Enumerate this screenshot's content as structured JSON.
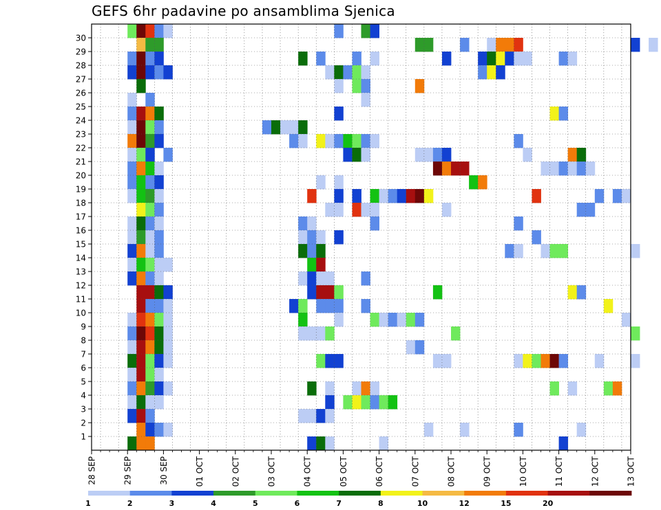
{
  "chart_data": {
    "type": "heatmap",
    "title": "GEFS 6hr padavine po ansamblima Sjenica",
    "x_ticks": [
      "28 SEP",
      "29 SEP",
      "30 SEP",
      "01 OCT",
      "02 OCT",
      "03 OCT",
      "04 OCT",
      "05 OCT",
      "06 OCT",
      "07 OCT",
      "08 OCT",
      "09 OCT",
      "10 OCT",
      "11 OCT",
      "12 OCT",
      "13 OCT"
    ],
    "y_ticks": [
      "1",
      "2",
      "3",
      "4",
      "5",
      "6",
      "7",
      "8",
      "9",
      "10",
      "11",
      "12",
      "13",
      "14",
      "15",
      "16",
      "17",
      "18",
      "19",
      "20",
      "21",
      "22",
      "23",
      "24",
      "25",
      "26",
      "27",
      "28",
      "29",
      "30"
    ],
    "x_range": [
      "28 SEP 00Z",
      "13 OCT 00Z"
    ],
    "x_step": "6h",
    "y_range": [
      0,
      30
    ],
    "grid": true,
    "colorbar": {
      "labels": [
        "1",
        "2",
        "3",
        "4",
        "5",
        "6",
        "7",
        "8",
        "10",
        "12",
        "15",
        "20"
      ],
      "colors": [
        "#bccdf5",
        "#5c8bea",
        "#1241d2",
        "#2e9b2a",
        "#6fea5c",
        "#13c213",
        "#0a6d0a",
        "#f2f21a",
        "#f5ba43",
        "#f27b09",
        "#e1320f",
        "#a70f0f",
        "#6d0707"
      ]
    },
    "cells": [
      [
        30,
        4,
        4
      ],
      [
        30,
        5,
        12
      ],
      [
        30,
        6,
        10
      ],
      [
        30,
        7,
        1
      ],
      [
        30,
        8,
        0
      ],
      [
        30,
        27,
        1
      ],
      [
        30,
        30,
        3
      ],
      [
        30,
        31,
        2
      ],
      [
        29,
        5,
        8
      ],
      [
        29,
        6,
        3
      ],
      [
        29,
        7,
        3
      ],
      [
        29,
        36,
        3
      ],
      [
        29,
        37,
        3
      ],
      [
        29,
        41,
        1
      ],
      [
        29,
        44,
        0
      ],
      [
        29,
        45,
        9
      ],
      [
        29,
        46,
        9
      ],
      [
        29,
        47,
        10
      ],
      [
        29,
        60,
        2
      ],
      [
        29,
        62,
        0
      ],
      [
        29,
        67,
        12
      ],
      [
        29,
        68,
        12
      ],
      [
        29,
        69,
        11
      ],
      [
        28,
        4,
        1
      ],
      [
        28,
        5,
        12
      ],
      [
        28,
        6,
        1
      ],
      [
        28,
        7,
        2
      ],
      [
        28,
        23,
        6
      ],
      [
        28,
        25,
        1
      ],
      [
        28,
        29,
        1
      ],
      [
        28,
        31,
        0
      ],
      [
        28,
        39,
        2
      ],
      [
        28,
        43,
        2
      ],
      [
        28,
        44,
        6
      ],
      [
        28,
        45,
        7
      ],
      [
        28,
        46,
        2
      ],
      [
        28,
        47,
        0
      ],
      [
        28,
        48,
        0
      ],
      [
        28,
        52,
        1
      ],
      [
        28,
        53,
        0
      ],
      [
        27,
        4,
        2
      ],
      [
        27,
        5,
        12
      ],
      [
        27,
        6,
        2
      ],
      [
        27,
        7,
        1
      ],
      [
        27,
        8,
        2
      ],
      [
        27,
        26,
        0
      ],
      [
        27,
        27,
        6
      ],
      [
        27,
        28,
        1
      ],
      [
        27,
        29,
        4
      ],
      [
        27,
        30,
        0
      ],
      [
        27,
        43,
        1
      ],
      [
        27,
        44,
        7
      ],
      [
        27,
        45,
        2
      ],
      [
        27,
        69,
        1
      ],
      [
        27,
        70,
        2
      ],
      [
        26,
        5,
        6
      ],
      [
        26,
        27,
        0
      ],
      [
        26,
        29,
        4
      ],
      [
        26,
        30,
        1
      ],
      [
        26,
        36,
        9
      ],
      [
        25,
        4,
        0
      ],
      [
        25,
        6,
        1
      ],
      [
        25,
        30,
        0
      ],
      [
        24,
        4,
        1
      ],
      [
        24,
        5,
        11
      ],
      [
        24,
        6,
        9
      ],
      [
        24,
        7,
        6
      ],
      [
        24,
        27,
        2
      ],
      [
        24,
        51,
        7
      ],
      [
        24,
        52,
        1
      ],
      [
        23,
        4,
        0
      ],
      [
        23,
        5,
        12
      ],
      [
        23,
        6,
        4
      ],
      [
        23,
        7,
        1
      ],
      [
        23,
        19,
        1
      ],
      [
        23,
        20,
        6
      ],
      [
        23,
        21,
        0
      ],
      [
        23,
        22,
        0
      ],
      [
        23,
        23,
        6
      ],
      [
        22,
        4,
        9
      ],
      [
        22,
        5,
        12
      ],
      [
        22,
        6,
        3
      ],
      [
        22,
        7,
        2
      ],
      [
        22,
        22,
        1
      ],
      [
        22,
        23,
        0
      ],
      [
        22,
        25,
        7
      ],
      [
        22,
        26,
        0
      ],
      [
        22,
        27,
        1
      ],
      [
        22,
        28,
        5
      ],
      [
        22,
        29,
        4
      ],
      [
        22,
        30,
        1
      ],
      [
        22,
        31,
        0
      ],
      [
        22,
        47,
        1
      ],
      [
        21,
        4,
        0
      ],
      [
        21,
        5,
        4
      ],
      [
        21,
        6,
        2
      ],
      [
        21,
        8,
        1
      ],
      [
        21,
        28,
        2
      ],
      [
        21,
        29,
        6
      ],
      [
        21,
        30,
        0
      ],
      [
        21,
        36,
        0
      ],
      [
        21,
        37,
        0
      ],
      [
        21,
        38,
        1
      ],
      [
        21,
        39,
        2
      ],
      [
        21,
        48,
        0
      ],
      [
        21,
        53,
        9
      ],
      [
        21,
        54,
        6
      ],
      [
        20,
        4,
        1
      ],
      [
        20,
        5,
        9
      ],
      [
        20,
        6,
        5
      ],
      [
        20,
        7,
        0
      ],
      [
        20,
        38,
        12
      ],
      [
        20,
        39,
        9
      ],
      [
        20,
        40,
        11
      ],
      [
        20,
        41,
        11
      ],
      [
        20,
        50,
        0
      ],
      [
        20,
        51,
        0
      ],
      [
        20,
        52,
        1
      ],
      [
        20,
        53,
        0
      ],
      [
        20,
        54,
        1
      ],
      [
        20,
        55,
        0
      ],
      [
        19,
        4,
        1
      ],
      [
        19,
        5,
        5
      ],
      [
        19,
        6,
        1
      ],
      [
        19,
        7,
        2
      ],
      [
        19,
        25,
        0
      ],
      [
        19,
        27,
        0
      ],
      [
        19,
        42,
        5
      ],
      [
        19,
        43,
        9
      ],
      [
        18,
        4,
        0
      ],
      [
        18,
        5,
        5
      ],
      [
        18,
        6,
        3
      ],
      [
        18,
        7,
        0
      ],
      [
        18,
        24,
        10
      ],
      [
        18,
        27,
        2
      ],
      [
        18,
        29,
        2
      ],
      [
        18,
        31,
        5
      ],
      [
        18,
        32,
        0
      ],
      [
        18,
        33,
        1
      ],
      [
        18,
        34,
        2
      ],
      [
        18,
        35,
        11
      ],
      [
        18,
        36,
        12
      ],
      [
        18,
        37,
        7
      ],
      [
        18,
        49,
        10
      ],
      [
        18,
        56,
        1
      ],
      [
        18,
        58,
        1
      ],
      [
        18,
        59,
        0
      ],
      [
        17,
        5,
        7
      ],
      [
        17,
        6,
        4
      ],
      [
        17,
        7,
        1
      ],
      [
        17,
        26,
        0
      ],
      [
        17,
        27,
        0
      ],
      [
        17,
        29,
        10
      ],
      [
        17,
        30,
        0
      ],
      [
        17,
        31,
        0
      ],
      [
        17,
        39,
        0
      ],
      [
        17,
        54,
        1
      ],
      [
        17,
        55,
        1
      ],
      [
        16,
        4,
        0
      ],
      [
        16,
        5,
        6
      ],
      [
        16,
        6,
        1
      ],
      [
        16,
        7,
        0
      ],
      [
        16,
        23,
        1
      ],
      [
        16,
        24,
        0
      ],
      [
        16,
        31,
        1
      ],
      [
        16,
        47,
        1
      ],
      [
        15,
        4,
        0
      ],
      [
        15,
        5,
        3
      ],
      [
        15,
        6,
        0
      ],
      [
        15,
        7,
        1
      ],
      [
        15,
        23,
        0
      ],
      [
        15,
        24,
        1
      ],
      [
        15,
        25,
        0
      ],
      [
        15,
        27,
        2
      ],
      [
        15,
        49,
        1
      ],
      [
        14,
        4,
        2
      ],
      [
        14,
        5,
        9
      ],
      [
        14,
        6,
        0
      ],
      [
        14,
        7,
        1
      ],
      [
        14,
        23,
        6
      ],
      [
        14,
        24,
        1
      ],
      [
        14,
        25,
        6
      ],
      [
        14,
        46,
        1
      ],
      [
        14,
        47,
        0
      ],
      [
        14,
        50,
        0
      ],
      [
        14,
        51,
        4
      ],
      [
        14,
        52,
        4
      ],
      [
        14,
        60,
        0
      ],
      [
        13,
        4,
        0
      ],
      [
        13,
        5,
        5
      ],
      [
        13,
        6,
        4
      ],
      [
        13,
        7,
        0
      ],
      [
        13,
        8,
        0
      ],
      [
        13,
        24,
        5
      ],
      [
        13,
        25,
        11
      ],
      [
        12,
        4,
        2
      ],
      [
        12,
        5,
        9
      ],
      [
        12,
        6,
        1
      ],
      [
        12,
        7,
        0
      ],
      [
        12,
        23,
        0
      ],
      [
        12,
        24,
        2
      ],
      [
        12,
        25,
        0
      ],
      [
        12,
        26,
        0
      ],
      [
        12,
        30,
        1
      ],
      [
        11,
        5,
        11
      ],
      [
        11,
        6,
        11
      ],
      [
        11,
        7,
        6
      ],
      [
        11,
        8,
        2
      ],
      [
        11,
        24,
        2
      ],
      [
        11,
        25,
        11
      ],
      [
        11,
        26,
        11
      ],
      [
        11,
        27,
        4
      ],
      [
        11,
        38,
        5
      ],
      [
        11,
        53,
        7
      ],
      [
        11,
        54,
        1
      ],
      [
        10,
        5,
        11
      ],
      [
        10,
        6,
        1
      ],
      [
        10,
        7,
        1
      ],
      [
        10,
        8,
        0
      ],
      [
        10,
        22,
        2
      ],
      [
        10,
        23,
        4
      ],
      [
        10,
        25,
        1
      ],
      [
        10,
        26,
        1
      ],
      [
        10,
        27,
        1
      ],
      [
        10,
        30,
        1
      ],
      [
        10,
        57,
        7
      ],
      [
        9,
        4,
        0
      ],
      [
        9,
        5,
        10
      ],
      [
        9,
        6,
        9
      ],
      [
        9,
        7,
        4
      ],
      [
        9,
        8,
        0
      ],
      [
        9,
        23,
        5
      ],
      [
        9,
        27,
        0
      ],
      [
        9,
        31,
        4
      ],
      [
        9,
        32,
        0
      ],
      [
        9,
        33,
        1
      ],
      [
        9,
        34,
        0
      ],
      [
        9,
        35,
        4
      ],
      [
        9,
        36,
        1
      ],
      [
        9,
        59,
        0
      ],
      [
        8,
        4,
        1
      ],
      [
        8,
        5,
        12
      ],
      [
        8,
        6,
        10
      ],
      [
        8,
        7,
        6
      ],
      [
        8,
        8,
        0
      ],
      [
        8,
        23,
        0
      ],
      [
        8,
        24,
        0
      ],
      [
        8,
        25,
        0
      ],
      [
        8,
        26,
        4
      ],
      [
        8,
        40,
        4
      ],
      [
        8,
        60,
        4
      ],
      [
        7,
        4,
        0
      ],
      [
        7,
        5,
        11
      ],
      [
        7,
        6,
        9
      ],
      [
        7,
        7,
        6
      ],
      [
        7,
        8,
        0
      ],
      [
        7,
        35,
        0
      ],
      [
        7,
        36,
        1
      ],
      [
        6,
        4,
        6
      ],
      [
        6,
        5,
        11
      ],
      [
        6,
        6,
        4
      ],
      [
        6,
        7,
        2
      ],
      [
        6,
        8,
        0
      ],
      [
        6,
        25,
        4
      ],
      [
        6,
        26,
        2
      ],
      [
        6,
        27,
        2
      ],
      [
        6,
        38,
        0
      ],
      [
        6,
        39,
        0
      ],
      [
        6,
        47,
        0
      ],
      [
        6,
        48,
        7
      ],
      [
        6,
        49,
        4
      ],
      [
        6,
        50,
        9
      ],
      [
        6,
        51,
        12
      ],
      [
        6,
        52,
        1
      ],
      [
        6,
        56,
        0
      ],
      [
        6,
        60,
        0
      ],
      [
        5,
        4,
        0
      ],
      [
        5,
        5,
        11
      ],
      [
        5,
        6,
        4
      ],
      [
        5,
        7,
        0
      ],
      [
        4,
        4,
        1
      ],
      [
        4,
        5,
        9
      ],
      [
        4,
        6,
        3
      ],
      [
        4,
        7,
        2
      ],
      [
        4,
        8,
        0
      ],
      [
        4,
        24,
        6
      ],
      [
        4,
        26,
        0
      ],
      [
        4,
        29,
        0
      ],
      [
        4,
        30,
        9
      ],
      [
        4,
        31,
        0
      ],
      [
        4,
        51,
        4
      ],
      [
        4,
        53,
        0
      ],
      [
        4,
        57,
        4
      ],
      [
        4,
        58,
        9
      ],
      [
        3,
        4,
        0
      ],
      [
        3,
        5,
        6
      ],
      [
        3,
        6,
        0
      ],
      [
        3,
        7,
        0
      ],
      [
        3,
        26,
        2
      ],
      [
        3,
        28,
        4
      ],
      [
        3,
        29,
        7
      ],
      [
        3,
        30,
        4
      ],
      [
        3,
        31,
        1
      ],
      [
        3,
        32,
        4
      ],
      [
        3,
        33,
        5
      ],
      [
        2,
        4,
        2
      ],
      [
        2,
        5,
        11
      ],
      [
        2,
        6,
        1
      ],
      [
        2,
        23,
        0
      ],
      [
        2,
        24,
        0
      ],
      [
        2,
        25,
        2
      ],
      [
        2,
        26,
        0
      ],
      [
        1,
        5,
        9
      ],
      [
        1,
        6,
        2
      ],
      [
        1,
        7,
        1
      ],
      [
        1,
        8,
        0
      ],
      [
        1,
        37,
        0
      ],
      [
        1,
        41,
        0
      ],
      [
        1,
        47,
        1
      ],
      [
        1,
        54,
        0
      ],
      [
        0,
        4,
        6
      ],
      [
        0,
        5,
        9
      ],
      [
        0,
        6,
        9
      ],
      [
        0,
        24,
        2
      ],
      [
        0,
        25,
        6
      ],
      [
        0,
        26,
        0
      ],
      [
        0,
        32,
        0
      ],
      [
        0,
        52,
        2
      ]
    ]
  }
}
